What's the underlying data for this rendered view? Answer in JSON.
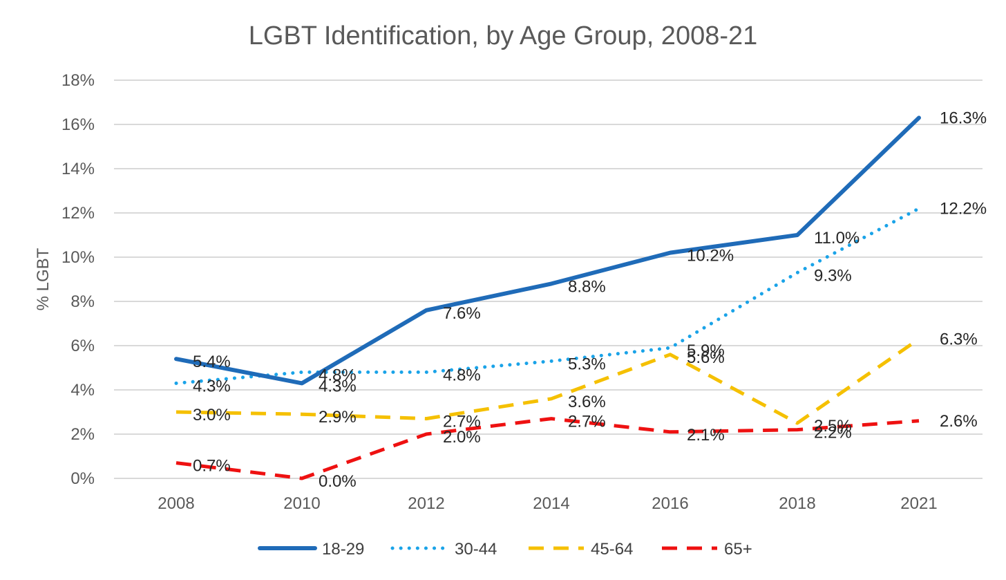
{
  "chart_data": {
    "type": "line",
    "title": "LGBT Identification, by Age Group, 2008-21",
    "xlabel": "",
    "ylabel": "% LGBT",
    "x": [
      "2008",
      "2010",
      "2012",
      "2014",
      "2016",
      "2018",
      "2021"
    ],
    "ylim": [
      0,
      18
    ],
    "yticks": [
      "0%",
      "2%",
      "4%",
      "6%",
      "8%",
      "10%",
      "12%",
      "14%",
      "16%",
      "18%"
    ],
    "grid": true,
    "legend_position": "bottom",
    "series": [
      {
        "name": "18-29",
        "color": "#1f6bb8",
        "style": "solid",
        "values": [
          5.4,
          4.3,
          7.6,
          8.8,
          10.2,
          11.0,
          16.3
        ],
        "labels": [
          "5.4%",
          "4.3%",
          "7.6%",
          "8.8%",
          "10.2%",
          "11.0%",
          "16.3%"
        ]
      },
      {
        "name": "30-44",
        "color": "#1aa3e8",
        "style": "dotted",
        "values": [
          4.3,
          4.8,
          4.8,
          5.3,
          5.9,
          9.3,
          12.2
        ],
        "labels": [
          "4.3%",
          "4.8%",
          "4.8%",
          "5.3%",
          "5.9%",
          "9.3%",
          "12.2%"
        ]
      },
      {
        "name": "45-64",
        "color": "#f5c000",
        "style": "dashed",
        "values": [
          3.0,
          2.9,
          2.7,
          3.6,
          5.6,
          2.5,
          6.3
        ],
        "labels": [
          "3.0%",
          "2.9%",
          "2.7%",
          "3.6%",
          "5.6%",
          "2.5%",
          "6.3%"
        ]
      },
      {
        "name": "65+",
        "color": "#ee1111",
        "style": "dashed",
        "values": [
          0.7,
          0.0,
          2.0,
          2.7,
          2.1,
          2.2,
          2.6
        ],
        "labels": [
          "0.7%",
          "0.0%",
          "2.0%",
          "2.7%",
          "2.1%",
          "2.2%",
          "2.6%"
        ]
      }
    ]
  }
}
